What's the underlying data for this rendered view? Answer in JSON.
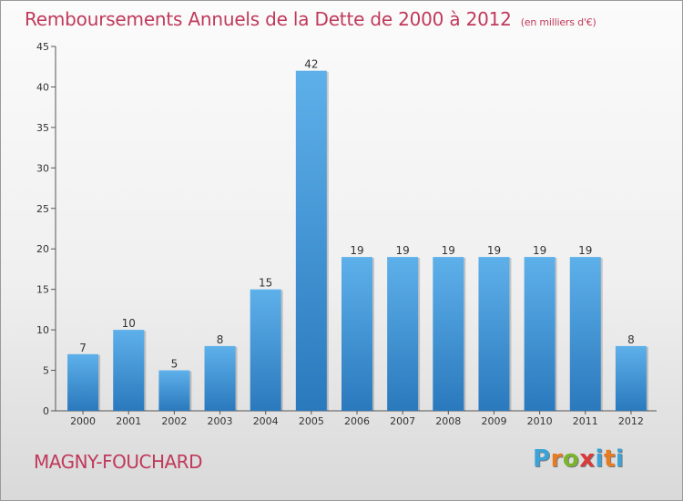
{
  "header": {
    "title": "Remboursements Annuels de la Dette de 2000 à 2012",
    "subtitle": "(en milliers d'€)"
  },
  "footer": {
    "city": "MAGNY-FOUCHARD",
    "logo_letters": [
      "P",
      "r",
      "o",
      "x",
      "i",
      "t",
      "i"
    ]
  },
  "colors": {
    "accent": "#c0395a",
    "bar_top": "#5eb0ea",
    "bar_bottom": "#2a79bd",
    "logo": [
      "#3aa3d8",
      "#e67b22",
      "#7ab42c",
      "#d93a3a",
      "#3aa3d8",
      "#e67b22",
      "#3aa3d8"
    ]
  },
  "chart_data": {
    "type": "bar",
    "title": "Remboursements Annuels de la Dette de 2000 à 2012",
    "subtitle": "(en milliers d'€)",
    "categories": [
      "2000",
      "2001",
      "2002",
      "2003",
      "2004",
      "2005",
      "2006",
      "2007",
      "2008",
      "2009",
      "2010",
      "2011",
      "2012"
    ],
    "values": [
      7,
      10,
      5,
      8,
      15,
      42,
      19,
      19,
      19,
      19,
      19,
      19,
      8
    ],
    "ylim": [
      0,
      45
    ],
    "yticks": [
      0,
      5,
      10,
      15,
      20,
      25,
      30,
      35,
      40,
      45
    ],
    "grid": false,
    "legend": "none"
  }
}
